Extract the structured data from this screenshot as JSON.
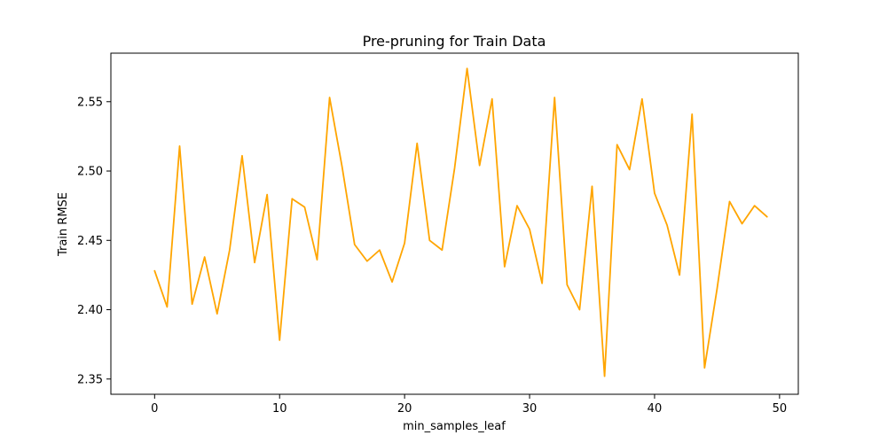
{
  "chart_data": {
    "type": "line",
    "title": "Pre-pruning for Train Data",
    "xlabel": "min_samples_leaf",
    "ylabel": "Train RMSE",
    "xlim": [
      -3.5,
      51.5
    ],
    "ylim": [
      2.339,
      2.585
    ],
    "x_ticks": [
      0,
      10,
      20,
      30,
      40,
      50
    ],
    "y_ticks": [
      2.35,
      2.4,
      2.45,
      2.5,
      2.55
    ],
    "grid": false,
    "legend": "none",
    "colors": {
      "line": "#ffa500"
    },
    "series": [
      {
        "x": [
          0,
          1,
          2,
          3,
          4,
          5,
          6,
          7,
          8,
          9,
          10,
          11,
          12,
          13,
          14,
          15,
          16,
          17,
          18,
          19,
          20,
          21,
          22,
          23,
          24,
          25,
          26,
          27,
          28,
          29,
          30,
          31,
          32,
          33,
          34,
          35,
          36,
          37,
          38,
          39,
          40,
          41,
          42,
          43,
          44,
          45,
          46,
          47,
          48,
          49
        ],
        "values": [
          2.428,
          2.402,
          2.518,
          2.404,
          2.438,
          2.397,
          2.443,
          2.511,
          2.434,
          2.483,
          2.378,
          2.48,
          2.474,
          2.436,
          2.553,
          2.503,
          2.447,
          2.435,
          2.443,
          2.42,
          2.448,
          2.52,
          2.45,
          2.443,
          2.502,
          2.574,
          2.504,
          2.552,
          2.431,
          2.475,
          2.458,
          2.419,
          2.553,
          2.418,
          2.4,
          2.489,
          2.352,
          2.519,
          2.501,
          2.552,
          2.484,
          2.461,
          2.425,
          2.541,
          2.358,
          2.415,
          2.478,
          2.462,
          2.475,
          2.467
        ]
      }
    ]
  }
}
